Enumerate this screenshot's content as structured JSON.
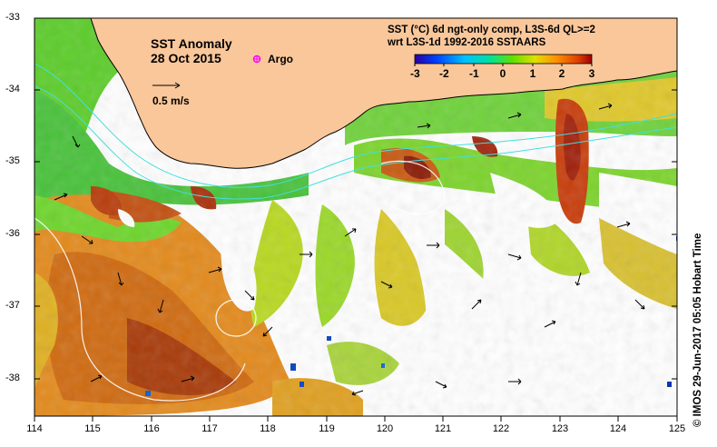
{
  "title": {
    "line1": "SST Anomaly",
    "line2": "28 Oct 2015"
  },
  "legend": {
    "argo_label": "Argo",
    "vector_label": "0.5 m/s"
  },
  "colorbar": {
    "title_line1": "SST (°C) 6d ngt-only comp, L3S-6d QL>=2",
    "title_line2": "wrt L3S-1d 1992-2016 SSTAARS",
    "ticks": [
      "-3",
      "-2",
      "-1",
      "0",
      "1",
      "2",
      "3"
    ],
    "min": -3,
    "max": 3,
    "colors": [
      "#2a00a0",
      "#0040ff",
      "#00c0ff",
      "#00e0a0",
      "#60e000",
      "#e0e000",
      "#ff9000",
      "#e04000",
      "#a00000"
    ]
  },
  "axes": {
    "lat_ticks": [
      "-33",
      "-34",
      "-35",
      "-36",
      "-37",
      "-38"
    ],
    "lon_ticks": [
      "114",
      "115",
      "116",
      "117",
      "118",
      "119",
      "120",
      "121",
      "122",
      "123",
      "124",
      "125"
    ],
    "lon_range": [
      114,
      125
    ],
    "lat_range": [
      -38.5,
      -33
    ]
  },
  "credit": "© IMOS 29-Jun-2017 05:05 Hobart Time",
  "colors": {
    "land": "#f9c79a",
    "coast": "#000000",
    "frame": "#000000"
  }
}
